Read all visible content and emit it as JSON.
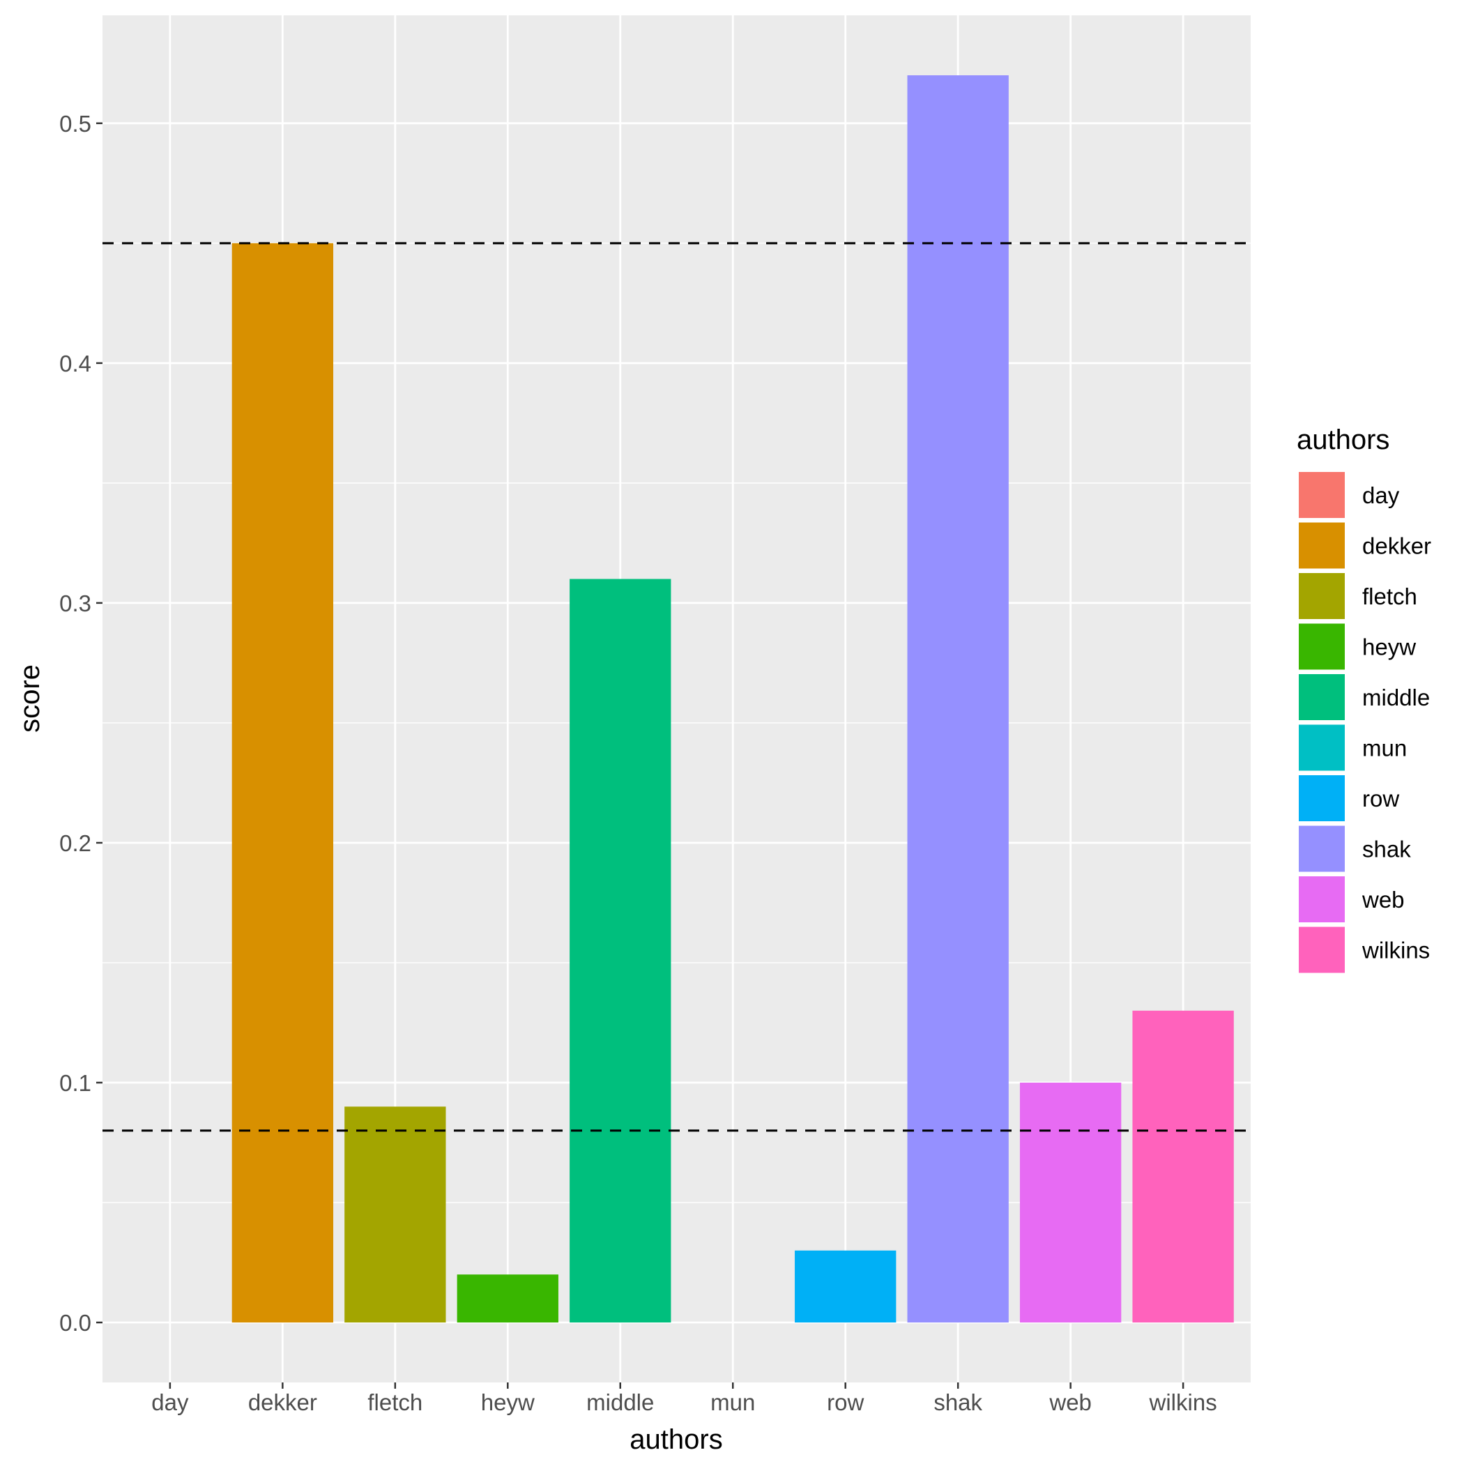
{
  "chart_data": {
    "type": "bar",
    "xlabel": "authors",
    "ylabel": "score",
    "categories": [
      "day",
      "dekker",
      "fletch",
      "heyw",
      "middle",
      "mun",
      "row",
      "shak",
      "web",
      "wilkins"
    ],
    "values": [
      0.0,
      0.45,
      0.09,
      0.02,
      0.31,
      0.0,
      0.03,
      0.52,
      0.1,
      0.13
    ],
    "colors": [
      "#F8766D",
      "#D89000",
      "#A3A500",
      "#39B600",
      "#00BF7D",
      "#00BFC4",
      "#00B0F6",
      "#9590FF",
      "#E76BF3",
      "#FF62BC"
    ],
    "ylim": [
      -0.025,
      0.545
    ],
    "yticks": [
      "0.0",
      "0.1",
      "0.2",
      "0.3",
      "0.4",
      "0.5"
    ],
    "reference_lines": [
      0.45,
      0.08
    ],
    "legend": {
      "title": "authors",
      "position": "right"
    },
    "grid": true
  }
}
